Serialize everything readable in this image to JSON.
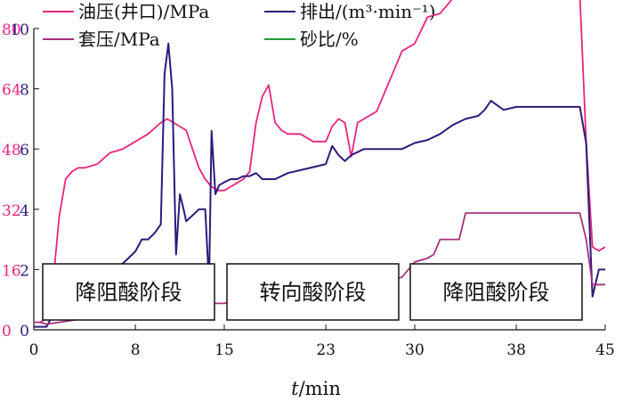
{
  "chart_data": {
    "type": "line",
    "x_axis": {
      "label_italic": "t",
      "label_rest": "/min",
      "ticks": [
        "0",
        "8",
        "15",
        "23",
        "30",
        "38",
        "45"
      ],
      "range": [
        0,
        45
      ]
    },
    "y_left_outer": {
      "ticks": [
        "0",
        "16",
        "32",
        "48",
        "64",
        "80"
      ],
      "range": [
        0,
        80
      ],
      "color": "#e8247f"
    },
    "y_left_inner": {
      "ticks": [
        "0",
        "2",
        "4",
        "6",
        "8",
        "10"
      ],
      "range": [
        0,
        10
      ],
      "color": "#2e1a7a"
    },
    "legend": [
      {
        "label": "油压(井口)/MPa",
        "color": "#e8247f"
      },
      {
        "label": "排出/(m³·min⁻¹)",
        "color": "#2e1a7a"
      },
      {
        "label": "套压/MPa",
        "color": "#a8307e"
      },
      {
        "label": "砂比/%",
        "color": "#1f9a3a"
      }
    ],
    "stages": [
      {
        "label": "降阻酸阶段"
      },
      {
        "label": "转向酸阶段"
      },
      {
        "label": "降阻酸阶段"
      }
    ],
    "series": [
      {
        "name": "油压(井口)/MPa",
        "color": "#e8247f",
        "x": [
          0,
          0.5,
          1,
          1.5,
          2,
          2.5,
          3,
          3.5,
          4,
          5,
          6,
          7,
          8,
          9,
          10,
          10.5,
          11,
          12,
          12.5,
          13,
          13.5,
          14,
          14.5,
          15,
          15.5,
          16,
          16.5,
          17,
          17.5,
          18,
          18.5,
          19,
          19.5,
          20,
          21,
          22,
          23,
          23.5,
          24,
          24.5,
          25,
          25.5,
          26,
          27,
          28,
          29,
          30,
          31,
          32,
          33,
          34,
          35,
          36,
          37,
          38,
          39,
          40,
          41,
          42,
          43,
          43.5,
          44,
          44.5,
          45
        ],
        "y": [
          2,
          2,
          3,
          12,
          30,
          40,
          42,
          43,
          43,
          44,
          47,
          48,
          50,
          52,
          55,
          56,
          55,
          53,
          48,
          43,
          40,
          38,
          37,
          37,
          38,
          39,
          40,
          42,
          55,
          62,
          65,
          55,
          53,
          52,
          52,
          50,
          50,
          54,
          56,
          55,
          46,
          55,
          56,
          58,
          66,
          74,
          76,
          83,
          84,
          88,
          88,
          90,
          92,
          91,
          91,
          92,
          90,
          89,
          89,
          89,
          50,
          22,
          21,
          22
        ]
      },
      {
        "name": "排出/(m³·min⁻¹)",
        "color": "#2e1a7a",
        "x": [
          0,
          1,
          1.5,
          2,
          2.5,
          3,
          4,
          5,
          6,
          6.5,
          7,
          8,
          8.5,
          9,
          9.5,
          10,
          10.3,
          10.6,
          10.9,
          11.2,
          11.5,
          11.8,
          12,
          12.5,
          13,
          13.5,
          13.8,
          14,
          14.3,
          14.6,
          15,
          15.5,
          16,
          16.5,
          17,
          17.5,
          18,
          19,
          20,
          21,
          22,
          23,
          23.5,
          24,
          24.5,
          25,
          26,
          27,
          28,
          29,
          30,
          31,
          32,
          33,
          34,
          35,
          35.5,
          36,
          37,
          38,
          39,
          40,
          41,
          42,
          43,
          43.5,
          44,
          44.5,
          45
        ],
        "y": [
          0.1,
          0.1,
          0.5,
          1,
          1.2,
          1.3,
          1.5,
          1.6,
          1.8,
          2.1,
          2.2,
          2.6,
          3,
          3,
          3.2,
          3.5,
          8.5,
          9.5,
          8,
          2.5,
          4.5,
          4,
          3.6,
          3.8,
          4,
          4,
          1.5,
          6.6,
          4.5,
          4.8,
          4.9,
          5,
          5,
          5.1,
          5.1,
          5.2,
          5,
          5,
          5.2,
          5.3,
          5.4,
          5.5,
          6.1,
          5.8,
          5.6,
          5.8,
          6,
          6,
          6,
          6,
          6.2,
          6.3,
          6.5,
          6.8,
          7,
          7.1,
          7.3,
          7.6,
          7.3,
          7.4,
          7.4,
          7.4,
          7.4,
          7.4,
          7.4,
          6.2,
          1.1,
          2,
          2
        ]
      },
      {
        "name": "套压/MPa",
        "color": "#a8307e",
        "x": [
          0,
          0.5,
          1,
          2,
          3,
          4,
          5,
          6,
          7,
          8,
          9,
          10,
          11,
          12,
          13,
          14,
          15,
          16,
          17,
          18,
          19,
          20,
          21,
          22,
          23,
          24,
          25,
          26,
          26.5,
          27,
          28,
          29,
          30,
          31,
          31.5,
          32,
          33,
          33.5,
          34,
          35,
          36,
          37,
          38,
          39,
          40,
          41,
          42,
          43,
          43.5,
          44,
          44.5,
          45
        ],
        "y": [
          2,
          2,
          1.5,
          2,
          2.5,
          3,
          3.5,
          4,
          4.5,
          5,
          5.5,
          6,
          6,
          6.5,
          7,
          7,
          7,
          8,
          8,
          9,
          9,
          9.5,
          10,
          10,
          10.5,
          11,
          11,
          12,
          14,
          13,
          13,
          14,
          18,
          19,
          20,
          24,
          24,
          24,
          31,
          31,
          31,
          31,
          31,
          31,
          31,
          31,
          31,
          31,
          24,
          12,
          12,
          12
        ]
      },
      {
        "name": "砂比/%",
        "color": "#1f9a3a",
        "x": [],
        "y": []
      }
    ]
  }
}
